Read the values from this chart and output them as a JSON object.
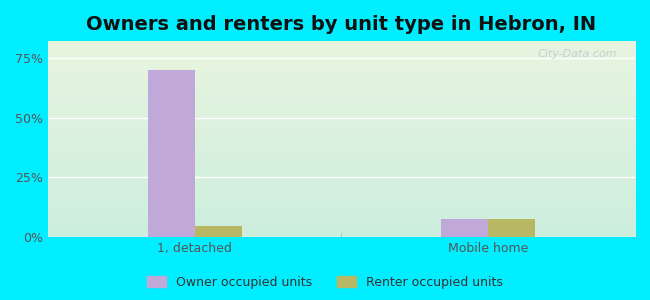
{
  "title": "Owners and renters by unit type in Hebron, IN",
  "categories": [
    "1, detached",
    "Mobile home"
  ],
  "owner_values": [
    70.0,
    7.5
  ],
  "renter_values": [
    4.5,
    7.5
  ],
  "owner_color": "#c0a8d8",
  "renter_color": "#b8b864",
  "background_outer": "#00eeff",
  "yticks": [
    0,
    25,
    50,
    75
  ],
  "ytick_labels": [
    "0%",
    "25%",
    "50%",
    "75%"
  ],
  "ylim": [
    0,
    82
  ],
  "bar_width": 0.32,
  "group_positions": [
    1.0,
    3.0
  ],
  "xlim": [
    0.0,
    4.0
  ],
  "legend_labels": [
    "Owner occupied units",
    "Renter occupied units"
  ],
  "watermark": "City-Data.com",
  "title_fontsize": 14,
  "tick_fontsize": 9,
  "legend_fontsize": 9,
  "separator_x": 2.0
}
